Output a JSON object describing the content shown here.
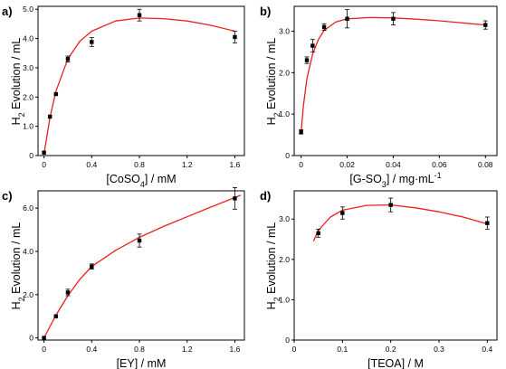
{
  "chart_data": [
    {
      "panel_label": "a)",
      "type": "scatter",
      "xlabel": "[CoSO4] / mM",
      "ylabel": "H2 Evolution / mL",
      "xlim": [
        -0.05,
        1.68
      ],
      "ylim": [
        0,
        5.1
      ],
      "xticks": [
        "0",
        "0.4",
        "0.8",
        "1.2",
        "1.6"
      ],
      "yticks": [
        "0",
        "1.0",
        "2.0",
        "3.0",
        "4.0",
        "5.0"
      ],
      "points": [
        {
          "x": 0.0,
          "y": 0.1,
          "err": 0.0
        },
        {
          "x": 0.05,
          "y": 1.33,
          "err": 0.0
        },
        {
          "x": 0.1,
          "y": 2.1,
          "err": 0.0
        },
        {
          "x": 0.2,
          "y": 3.3,
          "err": 0.1
        },
        {
          "x": 0.4,
          "y": 3.88,
          "err": 0.15
        },
        {
          "x": 0.8,
          "y": 4.8,
          "err": 0.2
        },
        {
          "x": 1.6,
          "y": 4.05,
          "err": 0.2
        }
      ],
      "fit": {
        "x_start": 0.0,
        "x_end": 1.6,
        "x": [
          0,
          0.05,
          0.1,
          0.2,
          0.3,
          0.4,
          0.6,
          0.8,
          1.0,
          1.2,
          1.4,
          1.6
        ],
        "y": [
          0.05,
          1.3,
          2.2,
          3.3,
          3.9,
          4.25,
          4.6,
          4.7,
          4.68,
          4.6,
          4.45,
          4.25
        ]
      }
    },
    {
      "panel_label": "b)",
      "type": "scatter",
      "xlabel": "[G-SO3] / mg·mL-1",
      "ylabel": "H2 Evolution / mL",
      "xlim": [
        -0.003,
        0.085
      ],
      "ylim": [
        0,
        3.6
      ],
      "xticks": [
        "0",
        "0.02",
        "0.04",
        "0.06",
        "0.08"
      ],
      "yticks": [
        "0",
        "1.0",
        "2.0",
        "3.0"
      ],
      "points": [
        {
          "x": 0.0,
          "y": 0.57,
          "err": 0.05
        },
        {
          "x": 0.0025,
          "y": 2.3,
          "err": 0.08
        },
        {
          "x": 0.005,
          "y": 2.65,
          "err": 0.15
        },
        {
          "x": 0.01,
          "y": 3.1,
          "err": 0.08
        },
        {
          "x": 0.02,
          "y": 3.3,
          "err": 0.22
        },
        {
          "x": 0.04,
          "y": 3.3,
          "err": 0.15
        },
        {
          "x": 0.08,
          "y": 3.15,
          "err": 0.1
        }
      ],
      "fit": {
        "x_start": 0.0,
        "x_end": 0.08,
        "x": [
          0,
          0.001,
          0.0025,
          0.005,
          0.0075,
          0.01,
          0.015,
          0.02,
          0.03,
          0.04,
          0.05,
          0.06,
          0.07,
          0.08
        ],
        "y": [
          0.55,
          1.2,
          1.85,
          2.45,
          2.8,
          3.02,
          3.22,
          3.3,
          3.33,
          3.32,
          3.29,
          3.25,
          3.2,
          3.15
        ]
      }
    },
    {
      "panel_label": "c)",
      "type": "scatter",
      "xlabel": "[EY] / mM",
      "ylabel": "H2 Evolution / mL",
      "xlim": [
        -0.05,
        1.68
      ],
      "ylim": [
        -0.1,
        6.8
      ],
      "xticks": [
        "0",
        "0.4",
        "0.8",
        "1.2",
        "1.6"
      ],
      "yticks": [
        "0",
        "2.0",
        "4.0",
        "6.0"
      ],
      "points": [
        {
          "x": 0.0,
          "y": 0.0,
          "err": 0.0
        },
        {
          "x": 0.1,
          "y": 1.0,
          "err": 0.0
        },
        {
          "x": 0.2,
          "y": 2.1,
          "err": 0.15
        },
        {
          "x": 0.4,
          "y": 3.3,
          "err": 0.12
        },
        {
          "x": 0.8,
          "y": 4.5,
          "err": 0.3
        },
        {
          "x": 1.6,
          "y": 6.45,
          "err": 0.5
        }
      ],
      "fit": {
        "x_start": 0.0,
        "x_end": 1.65,
        "x": [
          0,
          0.1,
          0.2,
          0.3,
          0.4,
          0.6,
          0.8,
          1.0,
          1.2,
          1.4,
          1.65
        ],
        "y": [
          0.0,
          1.05,
          1.95,
          2.7,
          3.3,
          4.05,
          4.65,
          5.15,
          5.6,
          6.05,
          6.6
        ]
      }
    },
    {
      "panel_label": "d)",
      "type": "scatter",
      "xlabel": "[TEOA] / M",
      "ylabel": "H2 Evolution / mL",
      "xlim": [
        0,
        0.42
      ],
      "ylim": [
        0,
        3.7
      ],
      "xticks": [
        "0",
        "0.1",
        "0.2",
        "0.3",
        "0.4"
      ],
      "yticks": [
        "0",
        "1.0",
        "2.0",
        "3.0"
      ],
      "points": [
        {
          "x": 0.05,
          "y": 2.65,
          "err": 0.1
        },
        {
          "x": 0.1,
          "y": 3.15,
          "err": 0.15
        },
        {
          "x": 0.2,
          "y": 3.35,
          "err": 0.17
        },
        {
          "x": 0.4,
          "y": 2.9,
          "err": 0.15
        }
      ],
      "fit": {
        "x_start": 0.04,
        "x_end": 0.4,
        "x": [
          0.04,
          0.05,
          0.075,
          0.1,
          0.15,
          0.2,
          0.25,
          0.3,
          0.35,
          0.4
        ],
        "y": [
          2.45,
          2.72,
          3.05,
          3.22,
          3.34,
          3.35,
          3.28,
          3.18,
          3.05,
          2.88
        ]
      }
    }
  ]
}
